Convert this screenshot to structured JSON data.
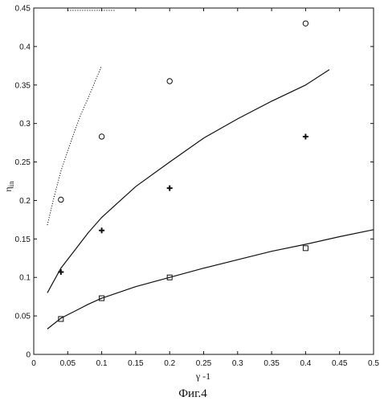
{
  "chart_data": {
    "type": "scatter",
    "xlabel": "γ -1",
    "ylabel": "η",
    "ylabel_sub": "in",
    "caption": "Фиг.4",
    "xlim": [
      0,
      0.5
    ],
    "ylim": [
      0,
      0.45
    ],
    "xticks": [
      "0",
      "0.05",
      "0.1",
      "0.15",
      "0.2",
      "0.25",
      "0.3",
      "0.35",
      "0.4",
      "0.45",
      "0.5"
    ],
    "yticks": [
      "0",
      "0.05",
      "0.1",
      "0.15",
      "0.2",
      "0.25",
      "0.3",
      "0.35",
      "0.4",
      "0.45"
    ],
    "grid": false,
    "series": [
      {
        "marker": "circle",
        "points": [
          [
            0.04,
            0.201
          ],
          [
            0.1,
            0.283
          ],
          [
            0.2,
            0.355
          ],
          [
            0.4,
            0.43
          ]
        ]
      },
      {
        "marker": "plus",
        "points": [
          [
            0.04,
            0.107
          ],
          [
            0.1,
            0.161
          ],
          [
            0.2,
            0.216
          ],
          [
            0.4,
            0.283
          ]
        ]
      },
      {
        "marker": "square",
        "points": [
          [
            0.04,
            0.046
          ],
          [
            0.1,
            0.073
          ],
          [
            0.2,
            0.1
          ],
          [
            0.4,
            0.138
          ]
        ]
      },
      {
        "marker": "none",
        "line": "solid",
        "points": [
          [
            0.02,
            0.08
          ],
          [
            0.04,
            0.112
          ],
          [
            0.06,
            0.135
          ],
          [
            0.08,
            0.158
          ],
          [
            0.1,
            0.178
          ],
          [
            0.15,
            0.218
          ],
          [
            0.2,
            0.25
          ],
          [
            0.25,
            0.281
          ],
          [
            0.3,
            0.306
          ],
          [
            0.35,
            0.329
          ],
          [
            0.4,
            0.35
          ],
          [
            0.435,
            0.37
          ]
        ]
      },
      {
        "marker": "none",
        "line": "solid",
        "points": [
          [
            0.02,
            0.033
          ],
          [
            0.04,
            0.047
          ],
          [
            0.06,
            0.056
          ],
          [
            0.08,
            0.065
          ],
          [
            0.1,
            0.073
          ],
          [
            0.15,
            0.088
          ],
          [
            0.2,
            0.1
          ],
          [
            0.25,
            0.112
          ],
          [
            0.3,
            0.123
          ],
          [
            0.35,
            0.134
          ],
          [
            0.4,
            0.143
          ],
          [
            0.45,
            0.153
          ],
          [
            0.5,
            0.162
          ]
        ]
      },
      {
        "marker": "none",
        "line": "dotted",
        "points": [
          [
            0.02,
            0.168
          ],
          [
            0.03,
            0.205
          ],
          [
            0.04,
            0.238
          ],
          [
            0.05,
            0.264
          ],
          [
            0.06,
            0.29
          ],
          [
            0.07,
            0.313
          ],
          [
            0.08,
            0.333
          ],
          [
            0.09,
            0.354
          ],
          [
            0.1,
            0.375
          ]
        ]
      },
      {
        "marker": "none",
        "line": "dotted",
        "points": [
          [
            0.05,
            0.447
          ],
          [
            0.12,
            0.447
          ]
        ]
      }
    ]
  }
}
